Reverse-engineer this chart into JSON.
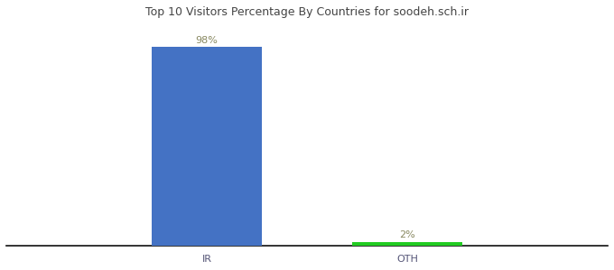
{
  "categories": [
    "IR",
    "OTH"
  ],
  "values": [
    98,
    2
  ],
  "bar_colors": [
    "#4472C4",
    "#22CC22"
  ],
  "label_colors": [
    "#888860",
    "#888860"
  ],
  "labels": [
    "98%",
    "2%"
  ],
  "title": "Top 10 Visitors Percentage By Countries for soodeh.sch.ir",
  "ylim": [
    0,
    110
  ],
  "background_color": "#ffffff",
  "bar_width": 0.55,
  "label_fontsize": 8,
  "tick_fontsize": 8,
  "title_fontsize": 9,
  "x_positions": [
    1.0,
    2.0
  ],
  "xlim": [
    0.0,
    3.0
  ]
}
